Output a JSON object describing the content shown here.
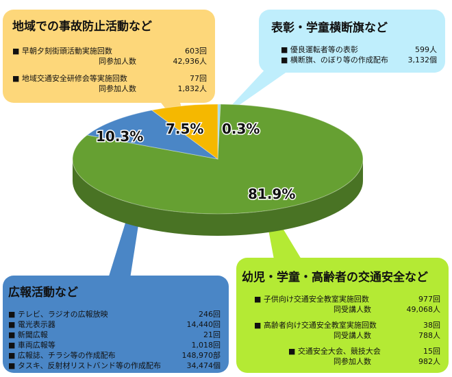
{
  "chart_data": {
    "type": "pie",
    "slices": [
      {
        "label_pct": "81.9%",
        "value": 81.9,
        "color": "#66a032"
      },
      {
        "label_pct": "10.3%",
        "value": 10.3,
        "color": "#4a86c6"
      },
      {
        "label_pct": "7.5%",
        "value": 7.5,
        "color": "#f5b800"
      },
      {
        "label_pct": "0.3%",
        "value": 0.3,
        "color": "#9ed8ea"
      }
    ]
  },
  "boxes": {
    "yellow": {
      "title": "地域での事故防止活動など",
      "color": "#fdd77a",
      "rows": [
        {
          "label": "■ 早朝夕刻街頭活動実施回数",
          "value": "603回"
        },
        {
          "label": "同参加人数",
          "value": "42,936人"
        },
        {
          "label": "■ 地域交通安全研修会等実施回数",
          "value": "77回"
        },
        {
          "label": "同参加人数",
          "value": "1,832人"
        }
      ]
    },
    "cyan": {
      "title": "表彰・学童横断旗など",
      "color": "#bfeefc",
      "rows": [
        {
          "label": "■ 優良運転者等の表彰",
          "value": "599人"
        },
        {
          "label": "■ 横断旗、のぼり等の作成配布",
          "value": "3,132個"
        }
      ]
    },
    "blue": {
      "title": "広報活動など",
      "color": "#4a86c6",
      "rows": [
        {
          "label": "■ テレビ、ラジオの広報放映",
          "value": "246回"
        },
        {
          "label": "■ 電光表示器",
          "value": "14,440回"
        },
        {
          "label": "■ 新聞広報",
          "value": "21回"
        },
        {
          "label": "■ 車両広報等",
          "value": "1,018回"
        },
        {
          "label": "■ 広報誌、チラシ等の作成配布",
          "value": "148,970部"
        },
        {
          "label": "■ タスキ、反射材リストバンド等の作成配布",
          "value": "34,474個"
        }
      ]
    },
    "lime": {
      "title": "幼児・学童・高齢者の交通安全など",
      "color": "#b4ea34",
      "rows": [
        {
          "label": "■ 子供向け交通安全教室実施回数",
          "value": "977回"
        },
        {
          "label": "同受講人数",
          "value": "49,068人"
        },
        {
          "label": "■ 高齢者向け交通安全教室実施回数",
          "value": "38回"
        },
        {
          "label": "同受講人数",
          "value": "788人"
        },
        {
          "label": "■ 交通安全大会、競技大会",
          "value": "15回"
        },
        {
          "label": "同参加人数",
          "value": "982人"
        }
      ]
    }
  }
}
